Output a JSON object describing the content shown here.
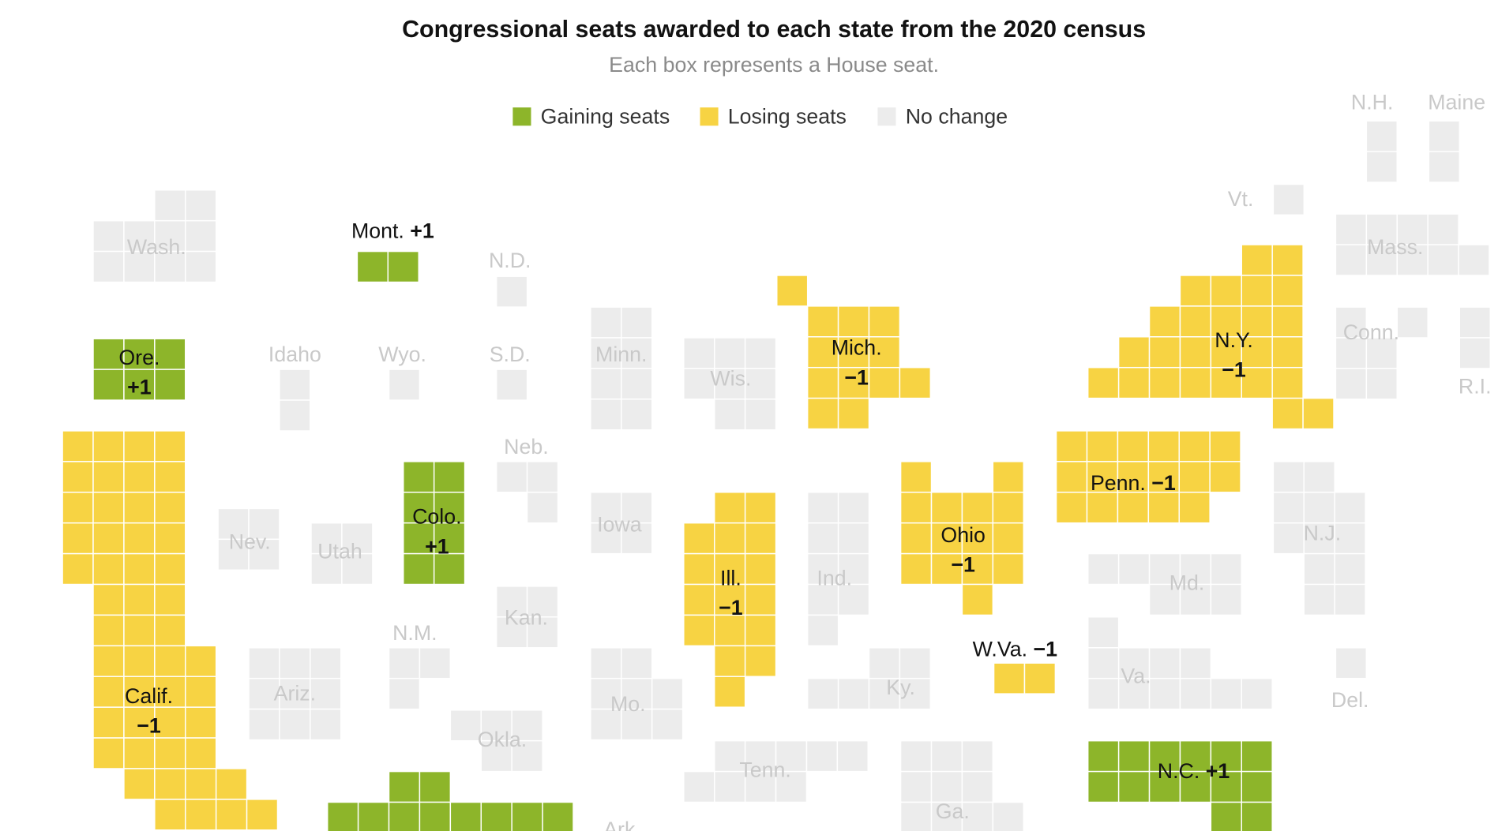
{
  "title": "Congressional seats awarded to each state from the 2020 census",
  "subtitle": "Each box represents a House seat.",
  "legend": [
    {
      "label": "Gaining seats",
      "color": "#8db52a"
    },
    {
      "label": "Losing seats",
      "color": "#f7d343"
    },
    {
      "label": "No change",
      "color": "#ececec"
    }
  ],
  "states": [
    {
      "name": "Wash.",
      "color": "#ececec"
    },
    {
      "name": "Mont.",
      "change": "+1",
      "color": "#8db52a"
    },
    {
      "name": "N.D.",
      "color": "#ececec"
    },
    {
      "name": "Ore.",
      "change": "+1",
      "color": "#8db52a"
    },
    {
      "name": "Idaho",
      "color": "#ececec"
    },
    {
      "name": "Wyo.",
      "color": "#ececec"
    },
    {
      "name": "S.D.",
      "color": "#ececec"
    },
    {
      "name": "Minn.",
      "color": "#ececec"
    },
    {
      "name": "Wis.",
      "color": "#ececec"
    },
    {
      "name": "Mich.",
      "change": "−1",
      "color": "#f7d343"
    },
    {
      "name": "N.Y.",
      "change": "−1",
      "color": "#f7d343"
    },
    {
      "name": "Vt.",
      "color": "#ececec"
    },
    {
      "name": "N.H.",
      "color": "#ececec"
    },
    {
      "name": "Maine",
      "color": "#ececec"
    },
    {
      "name": "Mass.",
      "color": "#ececec"
    },
    {
      "name": "Conn.",
      "color": "#ececec"
    },
    {
      "name": "R.I.",
      "color": "#ececec"
    },
    {
      "name": "Neb.",
      "color": "#ececec"
    },
    {
      "name": "Colo.",
      "change": "+1",
      "color": "#8db52a"
    },
    {
      "name": "Nev.",
      "color": "#ececec"
    },
    {
      "name": "Utah",
      "color": "#ececec"
    },
    {
      "name": "Calif.",
      "change": "−1",
      "color": "#f7d343"
    },
    {
      "name": "Iowa",
      "color": "#ececec"
    },
    {
      "name": "Ill.",
      "change": "−1",
      "color": "#f7d343"
    },
    {
      "name": "Ind.",
      "color": "#ececec"
    },
    {
      "name": "Ohio",
      "change": "−1",
      "color": "#f7d343"
    },
    {
      "name": "Penn.",
      "change": "−1",
      "color": "#f7d343"
    },
    {
      "name": "N.J.",
      "color": "#ececec"
    },
    {
      "name": "Md.",
      "color": "#ececec"
    },
    {
      "name": "Kan.",
      "color": "#ececec"
    },
    {
      "name": "N.M.",
      "color": "#ececec"
    },
    {
      "name": "W.Va.",
      "change": "−1",
      "color": "#f7d343"
    },
    {
      "name": "Ky.",
      "color": "#ececec"
    },
    {
      "name": "Va.",
      "color": "#ececec"
    },
    {
      "name": "Del.",
      "color": "#ececec"
    },
    {
      "name": "Ariz.",
      "color": "#ececec"
    },
    {
      "name": "Mo.",
      "color": "#ececec"
    },
    {
      "name": "Okla.",
      "color": "#ececec"
    },
    {
      "name": "Tenn.",
      "color": "#ececec"
    },
    {
      "name": "N.C.",
      "change": "+1",
      "color": "#8db52a"
    },
    {
      "name": "Ga.",
      "color": "#ececec"
    },
    {
      "name": "Ark.",
      "color": "#ececec"
    },
    {
      "color": "#8db52a"
    }
  ]
}
